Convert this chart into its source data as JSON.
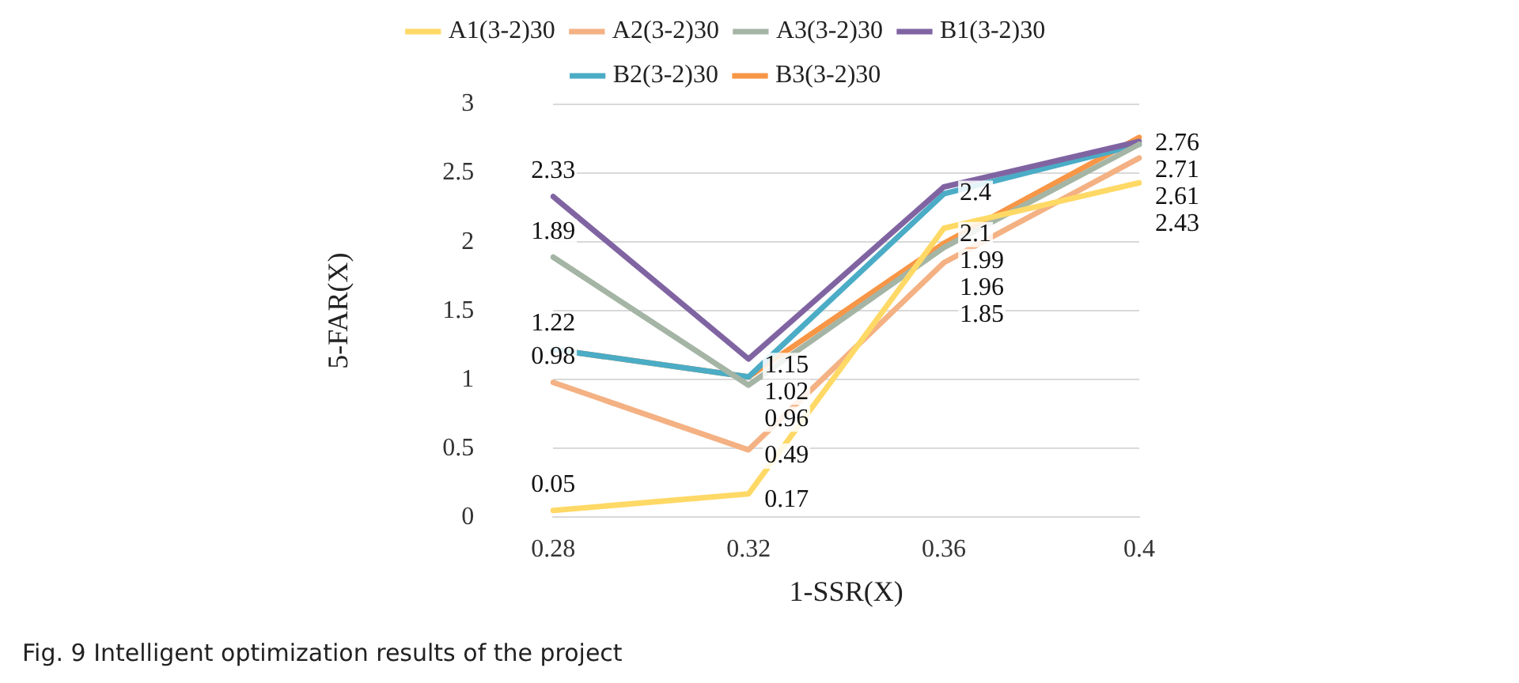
{
  "chart_data": {
    "type": "line",
    "xlabel": "1-SSR(X)",
    "ylabel": "5-FAR(X)",
    "categories": [
      "0.28",
      "0.32",
      "0.36",
      "0.4"
    ],
    "ylim": [
      0,
      3
    ],
    "yticks": [
      0,
      0.5,
      1,
      1.5,
      2,
      2.5,
      3
    ],
    "grid": "y",
    "legend": "top",
    "marker": "none",
    "line_style": "solid",
    "series": [
      {
        "name": "A1(3-2)30",
        "color": "#ffd966",
        "values": [
          0.05,
          0.17,
          2.1,
          2.43
        ],
        "value_labels": [
          "0.05",
          "0.17",
          "2.1",
          "2.43"
        ]
      },
      {
        "name": "A2(3-2)30",
        "color": "#f4b183",
        "values": [
          0.98,
          0.49,
          1.85,
          2.61
        ],
        "value_labels": [
          "0.98",
          "0.49",
          "1.85",
          "2.61"
        ]
      },
      {
        "name": "A3(3-2)30",
        "color": "#a5b5a5",
        "values": [
          1.89,
          0.96,
          1.96,
          2.71
        ],
        "value_labels": [
          "1.89",
          "0.96",
          "1.96",
          "2.71"
        ]
      },
      {
        "name": "B1(3-2)30",
        "color": "#8064a2",
        "values": [
          2.33,
          1.15,
          2.4,
          2.73
        ],
        "value_labels": [
          "2.33",
          "1.15",
          "2.4",
          null
        ]
      },
      {
        "name": "B2(3-2)30",
        "color": "#4bacc6",
        "values": [
          1.22,
          1.02,
          2.35,
          2.71
        ],
        "value_labels": [
          null,
          null,
          null,
          null
        ]
      },
      {
        "name": "B3(3-2)30",
        "color": "#f79646",
        "values": [
          1.22,
          1.02,
          1.99,
          2.76
        ],
        "value_labels": [
          "1.22",
          "1.02",
          "1.99",
          "2.76"
        ]
      }
    ],
    "annotations": [
      "Fig. 9 Intelligent optimization results of the project"
    ]
  }
}
